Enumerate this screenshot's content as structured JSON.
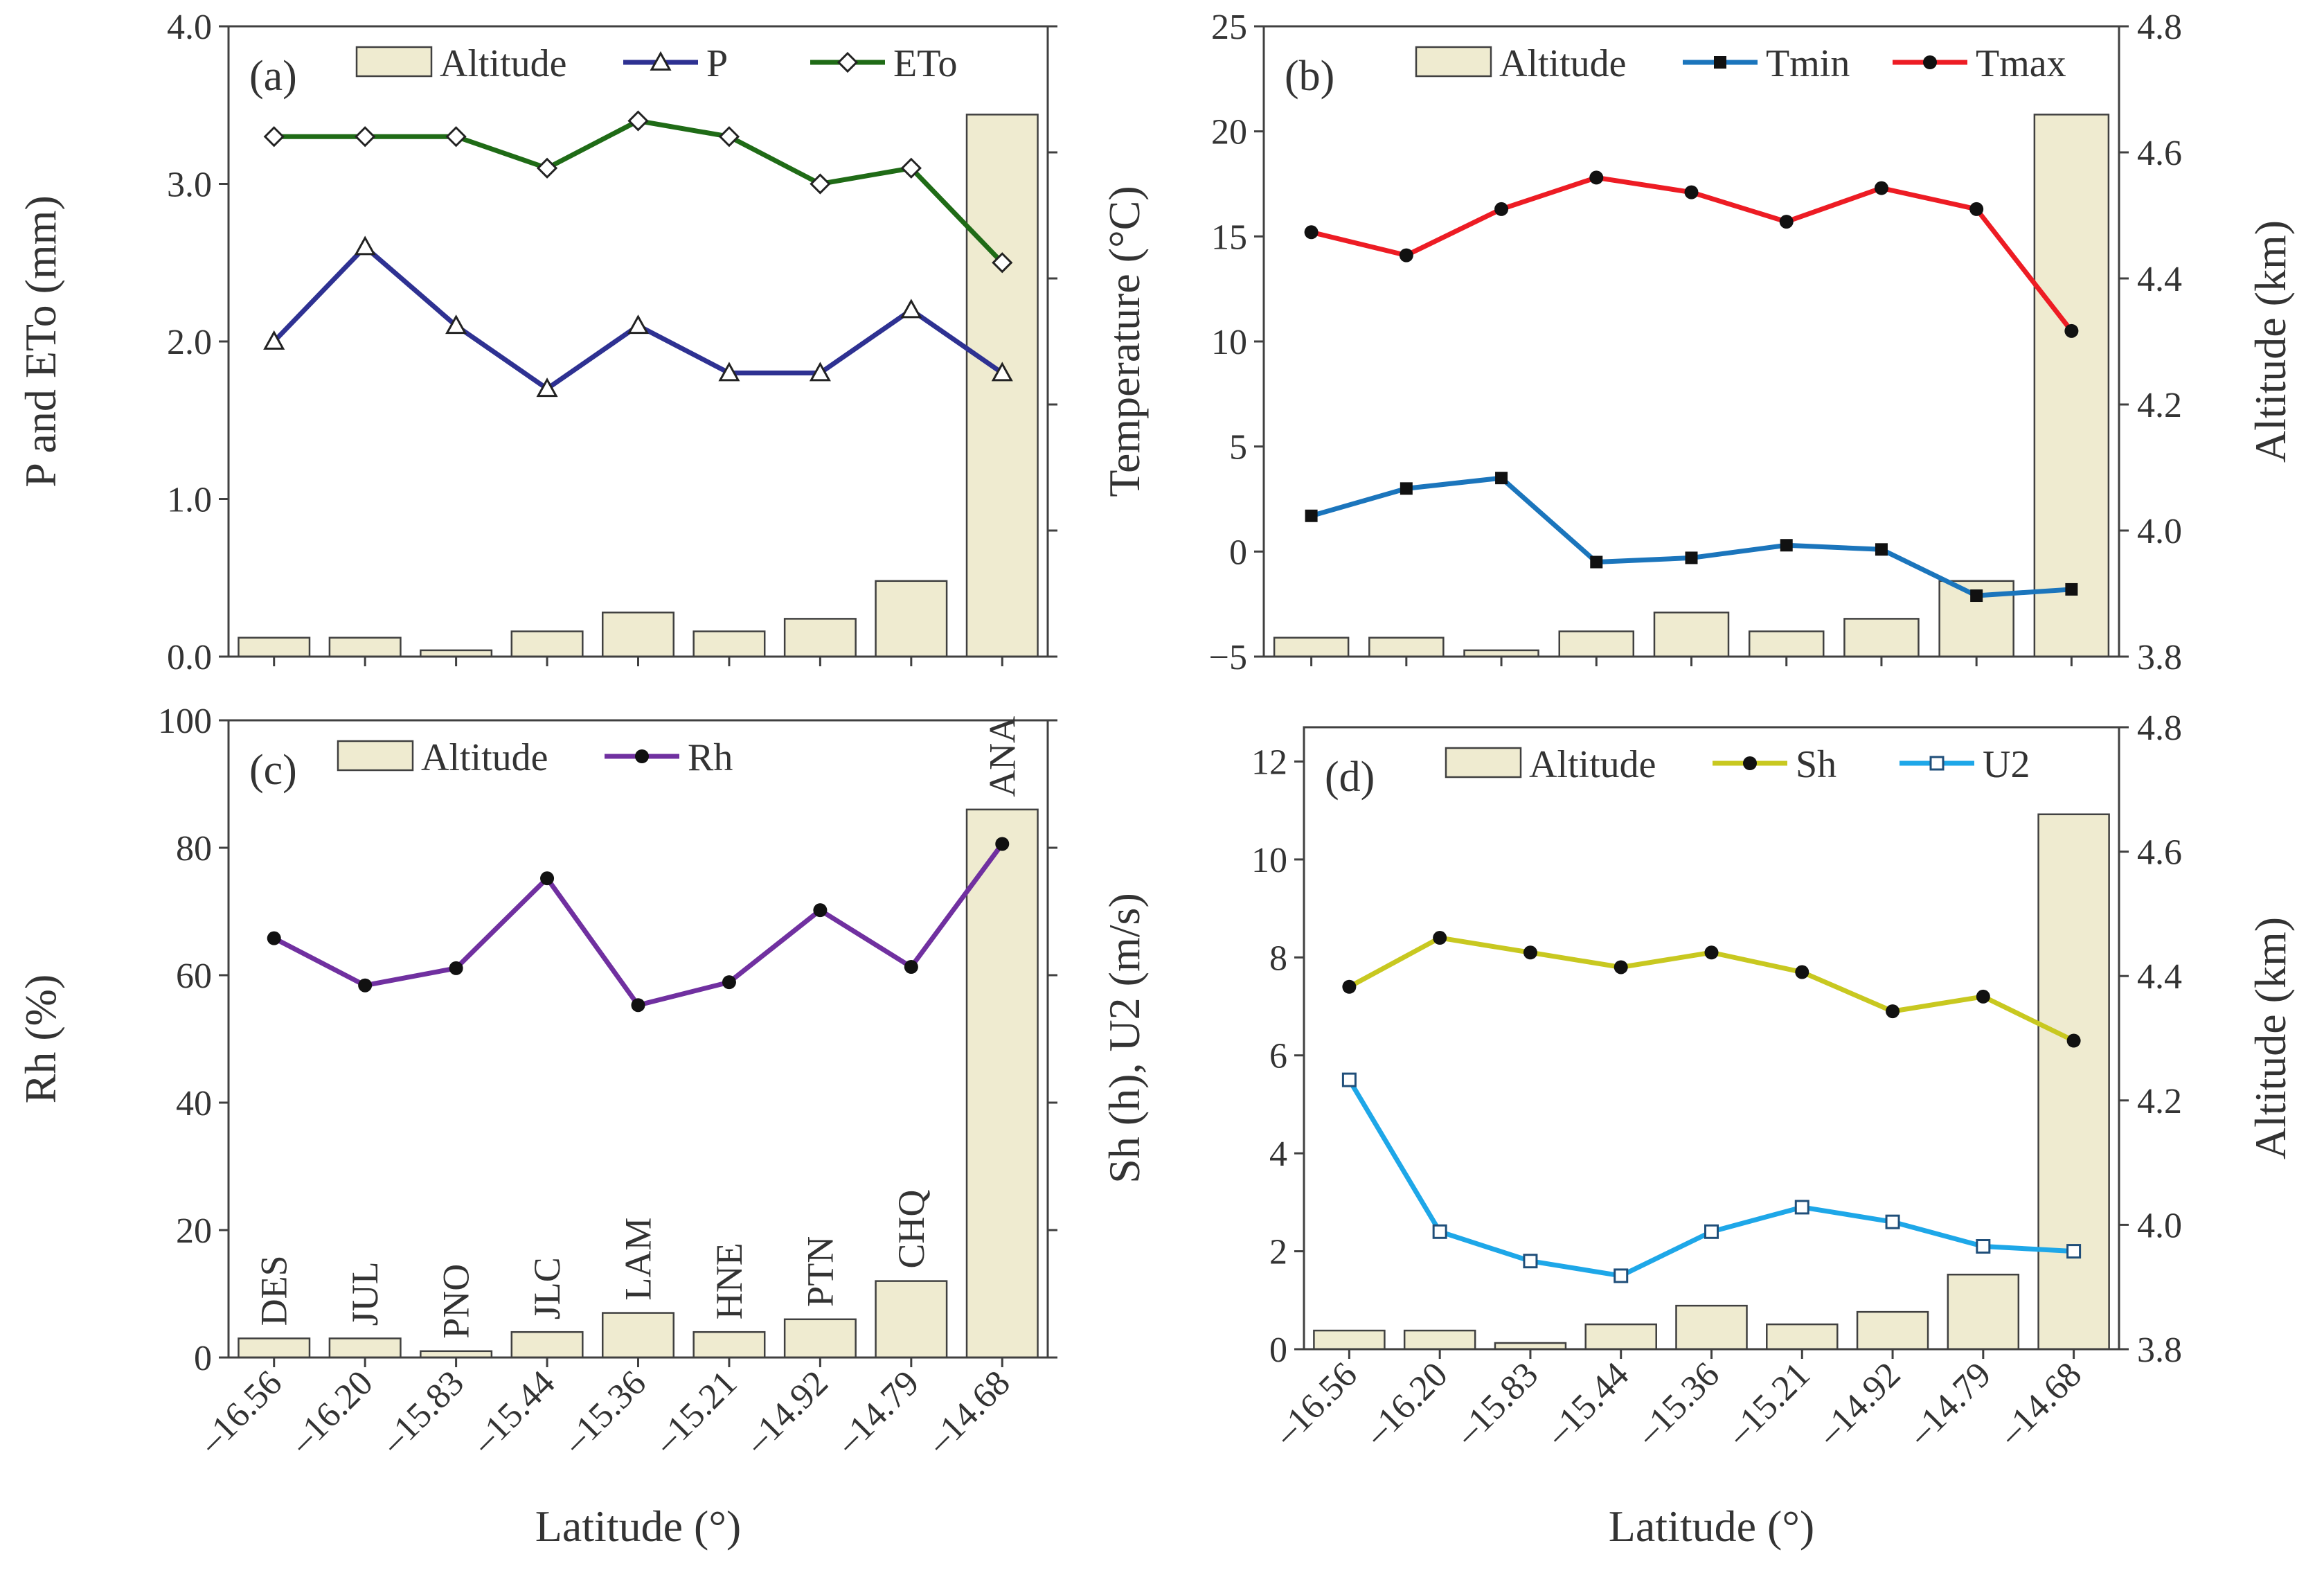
{
  "chart_data": [
    {
      "panel": "(a)",
      "type": "bar+line",
      "categories": [
        "-16.56",
        "-16.20",
        "-15.83",
        "-15.44",
        "-15.36",
        "-15.21",
        "-14.92",
        "-14.79",
        "-14.68"
      ],
      "category_labels": [
        "–16.56",
        "–16.20",
        "–15.83",
        "–15.44",
        "–15.36",
        "–15.21",
        "–14.92",
        "–14.79",
        "–14.68"
      ],
      "show_xticklabels": false,
      "xlabel": "",
      "ylabel": "P and ETo (mm)",
      "ylim": [
        0,
        4.0
      ],
      "yticks": [
        0,
        1,
        2,
        3,
        4
      ],
      "ytick_labels": [
        "0.0",
        "1.0",
        "2.0",
        "3.0",
        "4.0"
      ],
      "y2label": "",
      "y2lim": [
        3.8,
        4.8
      ],
      "y2ticks": [
        3.8,
        4.0,
        4.2,
        4.4,
        4.6,
        4.8
      ],
      "show_y2labels": false,
      "bars": {
        "name": "Altitude",
        "values": [
          3.83,
          3.83,
          3.81,
          3.84,
          3.87,
          3.84,
          3.86,
          3.92,
          4.66
        ],
        "color": "#efebd0"
      },
      "series": [
        {
          "name": "P",
          "values": [
            2.0,
            2.6,
            2.1,
            1.7,
            2.1,
            1.8,
            1.8,
            2.2,
            1.8
          ],
          "color": "#2e3192",
          "marker": "triangle"
        },
        {
          "name": "ETo",
          "values": [
            3.3,
            3.3,
            3.3,
            3.1,
            3.4,
            3.3,
            3.0,
            3.1,
            2.5
          ],
          "color": "#1f6b16",
          "marker": "diamond"
        }
      ],
      "legend_order": [
        "Altitude",
        "P",
        "ETo"
      ],
      "station_labels": []
    },
    {
      "panel": "(b)",
      "type": "bar+line",
      "categories": [
        "-16.56",
        "-16.20",
        "-15.83",
        "-15.44",
        "-15.36",
        "-15.21",
        "-14.92",
        "-14.79",
        "-14.68"
      ],
      "category_labels": [
        "–16.56",
        "–16.20",
        "–15.83",
        "–15.44",
        "–15.36",
        "–15.21",
        "–14.92",
        "–14.79",
        "–14.68"
      ],
      "show_xticklabels": false,
      "xlabel": "",
      "ylabel": "Temperature (°C)",
      "ylim": [
        -5,
        25
      ],
      "yticks": [
        -5,
        0,
        5,
        10,
        15,
        20,
        25
      ],
      "ytick_labels": [
        "−5",
        "0",
        "5",
        "10",
        "15",
        "20",
        "25"
      ],
      "y2label": "Altitude (km)",
      "y2lim": [
        3.8,
        4.8
      ],
      "y2ticks": [
        3.8,
        4.0,
        4.2,
        4.4,
        4.6,
        4.8
      ],
      "y2tick_labels": [
        "3.8",
        "4.0",
        "4.2",
        "4.4",
        "4.6",
        "4.8"
      ],
      "show_y2labels": true,
      "bars": {
        "name": "Altitude",
        "values": [
          3.83,
          3.83,
          3.81,
          3.84,
          3.87,
          3.84,
          3.86,
          3.92,
          4.66
        ],
        "color": "#efebd0"
      },
      "series": [
        {
          "name": "Tmin",
          "values": [
            1.7,
            3.0,
            3.5,
            -0.5,
            -0.3,
            0.3,
            0.1,
            -2.1,
            -1.8
          ],
          "color": "#1b75bc",
          "marker": "square"
        },
        {
          "name": "Tmax",
          "values": [
            15.2,
            14.1,
            16.3,
            17.8,
            17.1,
            15.7,
            17.3,
            16.3,
            10.5
          ],
          "color": "#ed1c24",
          "marker": "circle"
        }
      ],
      "legend_order": [
        "Altitude",
        "Tmin",
        "Tmax"
      ],
      "station_labels": []
    },
    {
      "panel": "(c)",
      "type": "bar+line",
      "categories": [
        "-16.56",
        "-16.20",
        "-15.83",
        "-15.44",
        "-15.36",
        "-15.21",
        "-14.92",
        "-14.79",
        "-14.68"
      ],
      "category_labels": [
        "–16.56",
        "–16.20",
        "–15.83",
        "–15.44",
        "–15.36",
        "–15.21",
        "–14.92",
        "–14.79",
        "–14.68"
      ],
      "show_xticklabels": true,
      "xlabel": "Latitude (°)",
      "ylabel": "Rh (%)",
      "ylim": [
        0,
        100
      ],
      "yticks": [
        0,
        20,
        40,
        60,
        80,
        100
      ],
      "ytick_labels": [
        "0",
        "20",
        "40",
        "60",
        "80",
        "100"
      ],
      "y2label": "",
      "y2lim": [
        3.8,
        4.8
      ],
      "y2ticks": [
        3.8,
        4.0,
        4.2,
        4.4,
        4.6,
        4.8
      ],
      "show_y2labels": false,
      "bars": {
        "name": "Altitude",
        "values": [
          3.83,
          3.83,
          3.81,
          3.84,
          3.87,
          3.84,
          3.86,
          3.92,
          4.66
        ],
        "color": "#efebd0"
      },
      "series": [
        {
          "name": "Rh",
          "values": [
            65.8,
            58.4,
            61.1,
            75.2,
            55.3,
            58.9,
            70.2,
            61.3,
            80.6
          ],
          "color": "#7030a0",
          "marker": "circle"
        }
      ],
      "legend_order": [
        "Altitude",
        "Rh"
      ],
      "station_labels": [
        "DES",
        "JUL",
        "PNO",
        "JLC",
        "LAM",
        "HNE",
        "PTN",
        "CHQ",
        "ANA"
      ]
    },
    {
      "panel": "(d)",
      "type": "bar+line",
      "categories": [
        "-16.56",
        "-16.20",
        "-15.83",
        "-15.44",
        "-15.36",
        "-15.21",
        "-14.92",
        "-14.79",
        "-14.68"
      ],
      "category_labels": [
        "–16.56",
        "–16.20",
        "–15.83",
        "–15.44",
        "–15.36",
        "–15.21",
        "–14.92",
        "–14.79",
        "–14.68"
      ],
      "show_xticklabels": true,
      "xlabel": "Latitude (°)",
      "ylabel": "Sh (h), U2 (m/s)",
      "ylim": [
        0,
        12.7
      ],
      "yticks": [
        0,
        2,
        4,
        6,
        8,
        10,
        12
      ],
      "ytick_labels": [
        "0",
        "2",
        "4",
        "6",
        "8",
        "10",
        "12"
      ],
      "y2label": "Altitude (km)",
      "y2lim": [
        3.8,
        4.8
      ],
      "y2ticks": [
        3.8,
        4.0,
        4.2,
        4.4,
        4.6,
        4.8
      ],
      "y2tick_labels": [
        "3.8",
        "4.0",
        "4.2",
        "4.4",
        "4.6",
        "4.8"
      ],
      "show_y2labels": true,
      "bars": {
        "name": "Altitude",
        "values": [
          3.83,
          3.83,
          3.81,
          3.84,
          3.87,
          3.84,
          3.86,
          3.92,
          4.66
        ],
        "color": "#efebd0"
      },
      "series": [
        {
          "name": "Sh",
          "values": [
            7.4,
            8.4,
            8.1,
            7.8,
            8.1,
            7.7,
            6.9,
            7.2,
            6.3
          ],
          "color": "#c8c820",
          "marker": "circle"
        },
        {
          "name": "U2",
          "values": [
            5.5,
            2.4,
            1.8,
            1.5,
            2.4,
            2.9,
            2.6,
            2.1,
            2.0
          ],
          "color": "#1ea7e8",
          "marker": "open-square"
        }
      ],
      "legend_order": [
        "Altitude",
        "Sh",
        "U2"
      ],
      "station_labels": []
    }
  ]
}
